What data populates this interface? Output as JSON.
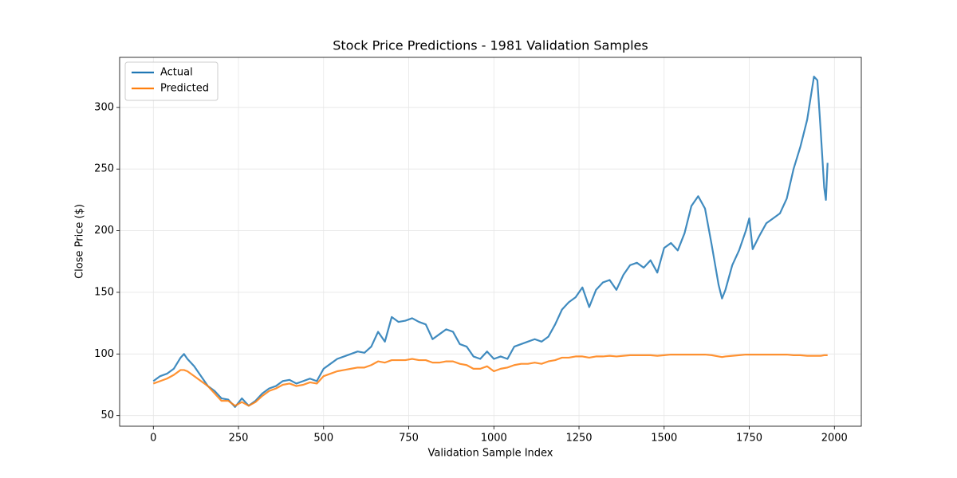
{
  "chart_data": {
    "type": "line",
    "title": "Stock Price Predictions - 1981 Validation Samples",
    "x_label": "Validation Sample Index",
    "y_label": "Close Price ($)",
    "x": [
      0,
      20,
      40,
      60,
      80,
      90,
      100,
      120,
      140,
      160,
      180,
      200,
      220,
      240,
      260,
      280,
      300,
      320,
      340,
      360,
      380,
      400,
      420,
      440,
      460,
      480,
      500,
      520,
      540,
      560,
      580,
      600,
      620,
      640,
      660,
      680,
      700,
      720,
      740,
      760,
      780,
      800,
      820,
      840,
      860,
      880,
      900,
      920,
      940,
      960,
      980,
      1000,
      1020,
      1040,
      1060,
      1080,
      1100,
      1120,
      1140,
      1160,
      1180,
      1200,
      1220,
      1240,
      1260,
      1280,
      1300,
      1320,
      1340,
      1360,
      1380,
      1400,
      1420,
      1440,
      1460,
      1480,
      1500,
      1520,
      1540,
      1560,
      1580,
      1600,
      1620,
      1640,
      1660,
      1670,
      1680,
      1700,
      1720,
      1740,
      1750,
      1760,
      1780,
      1800,
      1820,
      1840,
      1860,
      1880,
      1900,
      1920,
      1940,
      1950,
      1960,
      1970,
      1975,
      1980
    ],
    "series": [
      {
        "name": "Actual",
        "color": "#1f77b4",
        "values": [
          78,
          82,
          84,
          88,
          97,
          100,
          96,
          90,
          82,
          74,
          70,
          64,
          63,
          57,
          64,
          58,
          62,
          68,
          72,
          74,
          78,
          79,
          76,
          78,
          80,
          78,
          88,
          92,
          96,
          98,
          100,
          102,
          101,
          106,
          118,
          110,
          130,
          126,
          127,
          129,
          126,
          124,
          112,
          116,
          120,
          118,
          108,
          106,
          98,
          96,
          102,
          96,
          98,
          96,
          106,
          108,
          110,
          112,
          110,
          114,
          124,
          136,
          142,
          146,
          154,
          138,
          152,
          158,
          160,
          152,
          164,
          172,
          174,
          170,
          176,
          166,
          186,
          190,
          184,
          198,
          220,
          228,
          218,
          188,
          156,
          145,
          152,
          172,
          184,
          200,
          210,
          185,
          196,
          206,
          210,
          214,
          226,
          250,
          268,
          290,
          325,
          322,
          280,
          235,
          225,
          255
        ]
      },
      {
        "name": "Predicted",
        "color": "#ff7f0e",
        "values": [
          76,
          78,
          80,
          83,
          87,
          87,
          86,
          82,
          78,
          74,
          68,
          62,
          62,
          58,
          61,
          58,
          61,
          66,
          70,
          72,
          75,
          76,
          74,
          75,
          77,
          76,
          82,
          84,
          86,
          87,
          88,
          89,
          89,
          91,
          94,
          93,
          95,
          95,
          95,
          96,
          95,
          95,
          93,
          93,
          94,
          94,
          92,
          91,
          88,
          88,
          90,
          86,
          88,
          89,
          91,
          92,
          92,
          93,
          92,
          94,
          95,
          97,
          97,
          98,
          98,
          97,
          98,
          98,
          98.5,
          98,
          98.5,
          99,
          99,
          99,
          99,
          98.5,
          99,
          99.5,
          99.5,
          99.5,
          99.5,
          99.5,
          99.5,
          99,
          98,
          97.5,
          98,
          98.5,
          99,
          99.5,
          99.5,
          99.5,
          99.5,
          99.5,
          99.5,
          99.5,
          99.5,
          99,
          99,
          98.5,
          98.5,
          98.5,
          98.5,
          99,
          99,
          99
        ]
      }
    ],
    "xlim": [
      -99,
      2079
    ],
    "xticks": [
      0,
      250,
      500,
      750,
      1000,
      1250,
      1500,
      1750,
      2000
    ],
    "ylim": [
      41.4,
      340.6
    ],
    "yticks": [
      50,
      100,
      150,
      200,
      250,
      300
    ],
    "grid": true,
    "legend": "upper-left"
  }
}
